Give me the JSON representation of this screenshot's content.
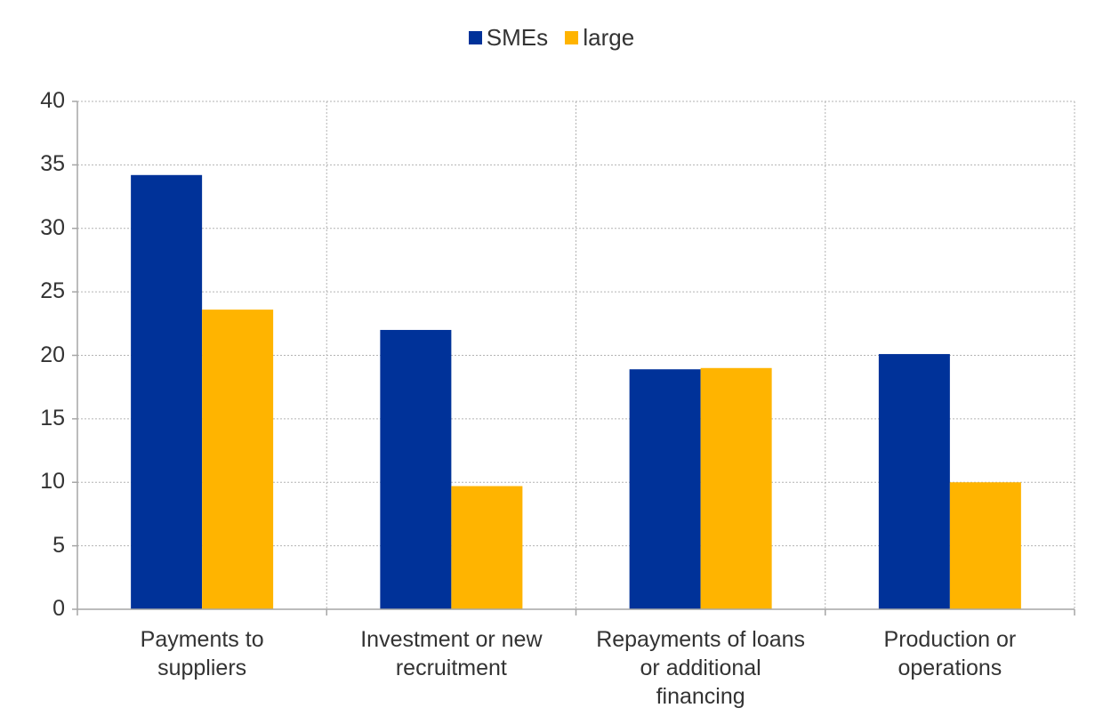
{
  "chart_data": {
    "type": "bar",
    "categories": [
      [
        "Payments to",
        "suppliers"
      ],
      [
        "Investment or new",
        "recruitment"
      ],
      [
        "Repayments of loans",
        "or additional",
        "financing"
      ],
      [
        "Production or",
        "operations"
      ]
    ],
    "series": [
      {
        "name": "SMEs",
        "color": "#003299",
        "values": [
          34.2,
          22.0,
          18.9,
          20.1
        ]
      },
      {
        "name": "large",
        "color": "#FFB400",
        "values": [
          23.6,
          9.7,
          19.0,
          10.0
        ]
      }
    ],
    "ylim": [
      0,
      40
    ],
    "yticks": [
      0,
      5,
      10,
      15,
      20,
      25,
      30,
      35,
      40
    ],
    "grid": true,
    "legend_position": "top-center"
  }
}
